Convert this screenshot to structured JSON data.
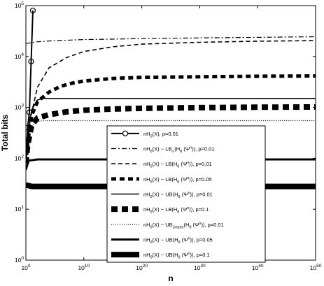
{
  "chart_data": {
    "type": "line",
    "title": "",
    "xlabel": "n",
    "ylabel": "Total bits",
    "xscale": "log",
    "yscale": "log",
    "xlim": [
      1,
      1e+50
    ],
    "ylim": [
      1,
      100000
    ],
    "grid": false,
    "legend_position": "lower-right",
    "x_tick_labels": [
      "10^0",
      "10^10",
      "10^20",
      "10^30",
      "10^40",
      "10^50"
    ],
    "y_tick_labels": [
      "10^0",
      "10^1",
      "10^2",
      "10^3",
      "10^4",
      "10^5"
    ],
    "series": [
      {
        "name": "nH_θ(X), p=0.01",
        "style": "solid-circle-markers",
        "x": [
          1,
          1.5,
          2,
          4,
          8,
          16
        ],
        "y": [
          80,
          170,
          400,
          800,
          8000,
          80000
        ]
      },
      {
        "name": "nH_θ(X) − LB_∞(H_θ(Ψ^n)), p=0.01",
        "style": "dashdot",
        "x": [
          1,
          100.0,
          100000.0,
          10000000000.0,
          1e+20,
          1e+30,
          1e+40,
          1e+50
        ],
        "y": [
          18000,
          19500,
          20500,
          21500,
          22500,
          23200,
          23800,
          24500
        ]
      },
      {
        "name": "nH_θ(X) − LB(H_θ(Ψ^n)), p=0.01",
        "style": "dashed",
        "x": [
          1,
          2,
          10,
          100,
          10000.0,
          10000000.0,
          10000000000.0,
          1000000000000000.0,
          1e+20,
          1e+30,
          1e+40,
          1e+50
        ],
        "y": [
          80,
          200,
          800,
          2500,
          6000,
          9500,
          12500,
          15500,
          17500,
          19000,
          20000,
          20500
        ]
      },
      {
        "name": "nH_θ(X) − LB(H_θ(Ψ^n)), p=0.05",
        "style": "thick-dashed",
        "x": [
          1,
          2,
          10,
          100,
          10000.0,
          1000000.0,
          100000000.0,
          10000000000.0,
          1000000000000000.0,
          1e+20,
          1e+30,
          1e+40,
          1e+50
        ],
        "y": [
          80,
          200,
          700,
          1300,
          2000,
          2600,
          3000,
          3300,
          3700,
          3900,
          4000,
          4100,
          4150
        ]
      },
      {
        "name": "nH_θ(X) − UB(H_θ(Ψ^n)), p=0.01",
        "style": "solid",
        "x": [
          1,
          2,
          10,
          100,
          1000,
          100000.0,
          10000000000.0,
          1e+20,
          1e+30,
          1e+40,
          1e+50
        ],
        "y": [
          80,
          250,
          900,
          1400,
          1500,
          1500,
          1500,
          1500,
          1500,
          1500,
          1500
        ]
      },
      {
        "name": "nH_θ(X) − LB(H_θ(Ψ^n)), p=0.1",
        "style": "very-thick-dashed",
        "x": [
          1,
          2,
          10,
          100,
          10000.0,
          10000000.0,
          10000000000.0,
          1000000000000000.0,
          1e+20,
          1e+30,
          1e+40,
          1e+50
        ],
        "y": [
          80,
          180,
          450,
          620,
          720,
          820,
          880,
          930,
          960,
          990,
          1010,
          1020
        ]
      },
      {
        "name": "nH_θ(X) − UB_simple(H_θ(Ψ^n)), p=0.01",
        "style": "dotted",
        "x": [
          1,
          2,
          10,
          100,
          1000,
          100000.0,
          10000000000.0,
          1e+20,
          1e+30,
          1e+40,
          1e+50
        ],
        "y": [
          80,
          180,
          420,
          530,
          550,
          550,
          550,
          550,
          550,
          550,
          550
        ]
      },
      {
        "name": "nH_θ(X) − UB(H_θ(Ψ^n)), p=0.05",
        "style": "thick-solid",
        "x": [
          1,
          3,
          100,
          100000.0,
          10000000000.0,
          1e+20,
          1e+30,
          1e+40,
          1e+50
        ],
        "y": [
          60,
          90,
          95,
          95,
          95,
          95,
          95,
          95,
          95
        ]
      },
      {
        "name": "nH_θ(X) − UB(H_θ(Ψ^n)), p=0.1",
        "style": "very-thick-solid",
        "x": [
          1,
          10,
          100000.0,
          10000000000.0,
          1e+20,
          1e+30,
          1e+40,
          1e+50
        ],
        "y": [
          30,
          28,
          28,
          28,
          28,
          28,
          28,
          28
        ]
      }
    ]
  },
  "legend": {
    "items": [
      {
        "base": "nH",
        "sub1": "θ",
        "mid": "(X), p=0.01",
        "pre": "",
        "sub2": "",
        "mid2": "",
        "sup": "",
        "post": ""
      },
      {
        "base": "nH",
        "sub1": "θ",
        "mid": "(X) − LB",
        "pre": "∞",
        "sub2": "θ",
        "mid2": "(H",
        "sup": "n",
        "post": ")), p=0.01"
      },
      {
        "base": "nH",
        "sub1": "θ",
        "mid": "(X) − LB(H",
        "pre": "",
        "sub2": "θ",
        "mid2": "(Ψ",
        "sup": "n",
        "post": ")), p=0.01"
      },
      {
        "base": "nH",
        "sub1": "θ",
        "mid": "(X) − LB(H",
        "pre": "",
        "sub2": "θ",
        "mid2": "(Ψ",
        "sup": "n",
        "post": ")), p=0.05"
      },
      {
        "base": "nH",
        "sub1": "θ",
        "mid": "(X) − UB(H",
        "pre": "",
        "sub2": "θ",
        "mid2": "(Ψ",
        "sup": "n",
        "post": ")), p=0.01"
      },
      {
        "base": "nH",
        "sub1": "θ",
        "mid": "(X) − LB(H",
        "pre": "",
        "sub2": "θ",
        "mid2": "(Ψ",
        "sup": "n",
        "post": ")), p=0.1"
      },
      {
        "base": "nH",
        "sub1": "θ",
        "mid": "(X) − UB",
        "pre": "simple",
        "sub2": "θ",
        "mid2": "(H",
        "sup": "n",
        "post": ")), p=0.01"
      },
      {
        "base": "nH",
        "sub1": "θ",
        "mid": "(X) − UB(H",
        "pre": "",
        "sub2": "θ",
        "mid2": "(Ψ",
        "sup": "n",
        "post": ")), p=0.05"
      },
      {
        "base": "nH",
        "sub1": "θ",
        "mid": "(X) − UB(H",
        "pre": "",
        "sub2": "θ",
        "mid2": "(Ψ",
        "sup": "n",
        "post": ")), p=0.1"
      }
    ]
  }
}
